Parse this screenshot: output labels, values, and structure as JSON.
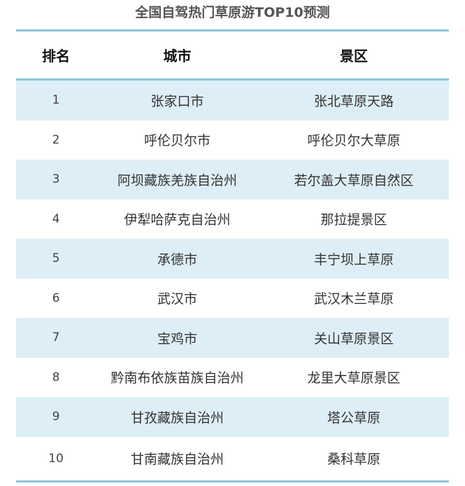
{
  "title": "全国自驾热门草原游TOP10预测",
  "colors": {
    "accent_line": "#8fc4da",
    "stripe": "#deeef6"
  },
  "table": {
    "headers": [
      "排名",
      "城市",
      "景区"
    ],
    "rows": [
      {
        "rank": "1",
        "city": "张家口市",
        "scenic": "张北草原天路"
      },
      {
        "rank": "2",
        "city": "呼伦贝尔市",
        "scenic": "呼伦贝尔大草原"
      },
      {
        "rank": "3",
        "city": "阿坝藏族羌族自治州",
        "scenic": "若尔盖大草原自然区"
      },
      {
        "rank": "4",
        "city": "伊犁哈萨克自治州",
        "scenic": "那拉提景区"
      },
      {
        "rank": "5",
        "city": "承德市",
        "scenic": "丰宁坝上草原"
      },
      {
        "rank": "6",
        "city": "武汉市",
        "scenic": "武汉木兰草原"
      },
      {
        "rank": "7",
        "city": "宝鸡市",
        "scenic": "关山草原景区"
      },
      {
        "rank": "8",
        "city": "黔南布依族苗族自治州",
        "scenic": "龙里大草原景区"
      },
      {
        "rank": "9",
        "city": "甘孜藏族自治州",
        "scenic": "塔公草原"
      },
      {
        "rank": "10",
        "city": "甘南藏族自治州",
        "scenic": "桑科草原"
      }
    ]
  }
}
